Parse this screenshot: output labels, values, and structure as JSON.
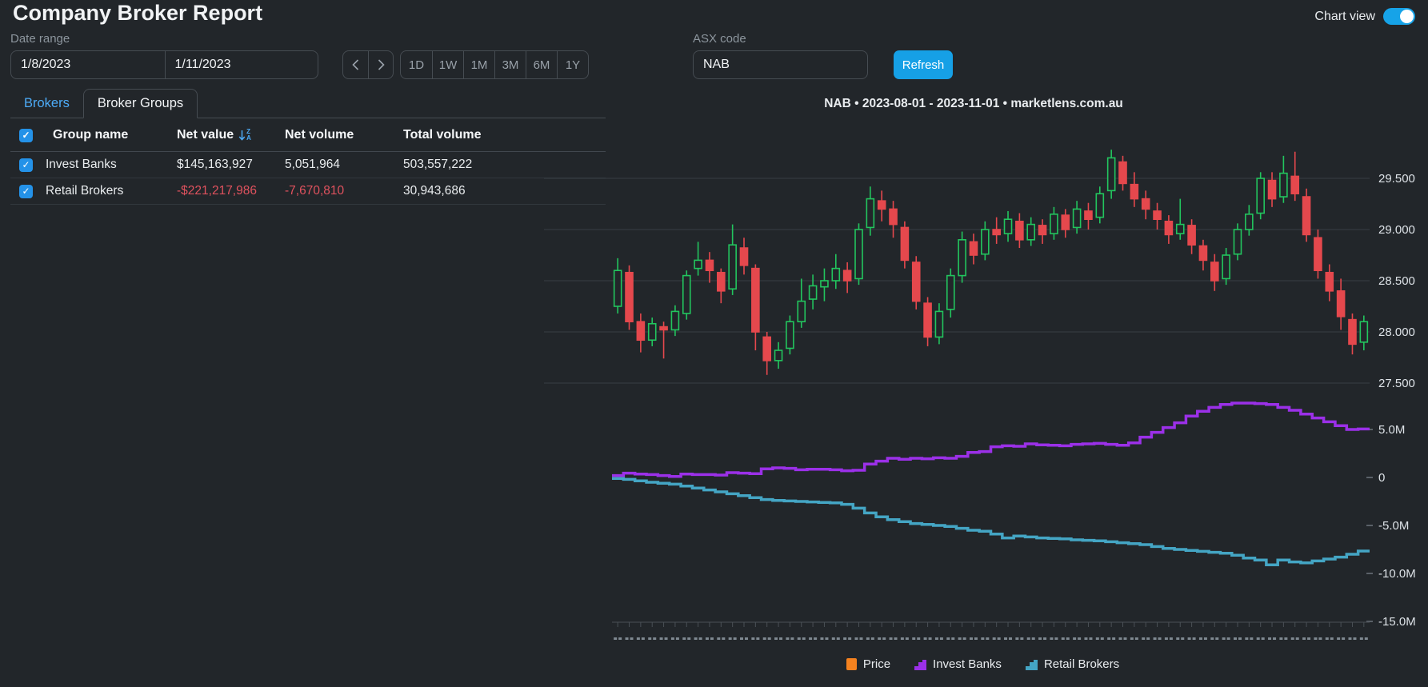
{
  "page": {
    "title": "Company Broker Report"
  },
  "header": {
    "chart_view_label": "Chart view",
    "chart_view_on": true
  },
  "controls": {
    "date_range_label": "Date range",
    "date_from": "1/8/2023",
    "date_to": "1/11/2023",
    "nav_prev": "chevron-left",
    "nav_next": "chevron-right",
    "periods": [
      "1D",
      "1W",
      "1M",
      "3M",
      "6M",
      "1Y"
    ],
    "asx_label": "ASX code",
    "asx_value": "NAB",
    "refresh_label": "Refresh"
  },
  "tabs": {
    "brokers": "Brokers",
    "broker_groups": "Broker Groups"
  },
  "table": {
    "headers": {
      "group_name": "Group name",
      "net_value": "Net value",
      "net_volume": "Net volume",
      "total_volume": "Total volume"
    },
    "rows": [
      {
        "checked": true,
        "name": "Invest Banks",
        "net_value": "$145,163,927",
        "net_volume": "5,051,964",
        "total_volume": "503,557,222",
        "negative": false
      },
      {
        "checked": true,
        "name": "Retail Brokers",
        "net_value": "-$221,217,986",
        "net_volume": "-7,670,810",
        "total_volume": "30,943,686",
        "negative": true
      }
    ]
  },
  "chart_data": {
    "type": "candlestick+step-lines",
    "title": "NAB • 2023-08-01 - 2023-11-01 • marketlens.com.au",
    "symbol": "NAB",
    "date_start": "2023-08-01",
    "date_end": "2023-11-01",
    "source": "marketlens.com.au",
    "price_axis": {
      "ticks": [
        29.5,
        29.0,
        28.5,
        28.0,
        27.5
      ],
      "labels": [
        "29.500",
        "29.000",
        "28.500",
        "28.000",
        "27.500"
      ]
    },
    "volume_axis": {
      "ticks": [
        5,
        0,
        -5,
        -10,
        -15
      ],
      "labels": [
        "5.0M",
        "0",
        "-5.0M",
        "-10.0M",
        "-15.0M"
      ],
      "unit": "millions of shares"
    },
    "colors": {
      "up": "#22c55e",
      "down": "#e5484d",
      "grid": "#383e44",
      "axis": "#4a5056",
      "tick_label": "#dde2e7"
    },
    "candles_ohlc": [
      [
        28.25,
        28.72,
        28.18,
        28.6
      ],
      [
        28.58,
        28.65,
        28.02,
        28.1
      ],
      [
        28.1,
        28.18,
        27.8,
        27.92
      ],
      [
        27.92,
        28.14,
        27.86,
        28.08
      ],
      [
        28.05,
        28.1,
        27.74,
        28.02
      ],
      [
        28.02,
        28.26,
        27.96,
        28.2
      ],
      [
        28.18,
        28.6,
        28.12,
        28.55
      ],
      [
        28.62,
        28.88,
        28.55,
        28.7
      ],
      [
        28.7,
        28.78,
        28.48,
        28.6
      ],
      [
        28.58,
        28.62,
        28.28,
        28.4
      ],
      [
        28.42,
        29.05,
        28.36,
        28.85
      ],
      [
        28.82,
        28.92,
        28.56,
        28.65
      ],
      [
        28.62,
        28.66,
        27.82,
        28.0
      ],
      [
        27.95,
        28.0,
        27.58,
        27.72
      ],
      [
        27.72,
        27.9,
        27.64,
        27.82
      ],
      [
        27.84,
        28.16,
        27.78,
        28.1
      ],
      [
        28.1,
        28.52,
        28.04,
        28.3
      ],
      [
        28.32,
        28.56,
        28.22,
        28.45
      ],
      [
        28.44,
        28.62,
        28.3,
        28.5
      ],
      [
        28.5,
        28.76,
        28.42,
        28.62
      ],
      [
        28.6,
        28.68,
        28.38,
        28.5
      ],
      [
        28.52,
        29.06,
        28.46,
        29.0
      ],
      [
        29.02,
        29.42,
        28.94,
        29.3
      ],
      [
        29.28,
        29.38,
        29.08,
        29.2
      ],
      [
        29.2,
        29.28,
        28.92,
        29.05
      ],
      [
        29.02,
        29.08,
        28.62,
        28.7
      ],
      [
        28.68,
        28.74,
        28.22,
        28.3
      ],
      [
        28.28,
        28.34,
        27.86,
        27.95
      ],
      [
        27.95,
        28.28,
        27.88,
        28.2
      ],
      [
        28.22,
        28.62,
        28.14,
        28.55
      ],
      [
        28.55,
        28.98,
        28.48,
        28.9
      ],
      [
        28.88,
        28.96,
        28.66,
        28.75
      ],
      [
        28.76,
        29.08,
        28.7,
        29.0
      ],
      [
        29.0,
        29.12,
        28.86,
        28.95
      ],
      [
        28.96,
        29.18,
        28.88,
        29.1
      ],
      [
        29.08,
        29.16,
        28.82,
        28.9
      ],
      [
        28.9,
        29.12,
        28.84,
        29.05
      ],
      [
        29.04,
        29.1,
        28.86,
        28.95
      ],
      [
        28.96,
        29.22,
        28.9,
        29.15
      ],
      [
        29.14,
        29.2,
        28.92,
        29.0
      ],
      [
        29.02,
        29.28,
        28.96,
        29.2
      ],
      [
        29.18,
        29.26,
        29.0,
        29.1
      ],
      [
        29.12,
        29.42,
        29.06,
        29.35
      ],
      [
        29.38,
        29.78,
        29.3,
        29.7
      ],
      [
        29.66,
        29.72,
        29.38,
        29.45
      ],
      [
        29.44,
        29.56,
        29.22,
        29.3
      ],
      [
        29.3,
        29.38,
        29.1,
        29.2
      ],
      [
        29.18,
        29.26,
        29.0,
        29.1
      ],
      [
        29.08,
        29.14,
        28.86,
        28.95
      ],
      [
        28.96,
        29.3,
        28.9,
        29.05
      ],
      [
        29.04,
        29.1,
        28.76,
        28.85
      ],
      [
        28.84,
        28.9,
        28.6,
        28.7
      ],
      [
        28.68,
        28.76,
        28.4,
        28.5
      ],
      [
        28.52,
        28.82,
        28.46,
        28.75
      ],
      [
        28.76,
        29.06,
        28.7,
        29.0
      ],
      [
        29.0,
        29.24,
        28.94,
        29.15
      ],
      [
        29.16,
        29.56,
        29.1,
        29.5
      ],
      [
        29.48,
        29.56,
        29.22,
        29.3
      ],
      [
        29.32,
        29.72,
        29.26,
        29.55
      ],
      [
        29.52,
        29.76,
        29.28,
        29.35
      ],
      [
        29.32,
        29.4,
        28.88,
        28.95
      ],
      [
        28.92,
        29.0,
        28.52,
        28.6
      ],
      [
        28.58,
        28.66,
        28.3,
        28.4
      ],
      [
        28.4,
        28.52,
        28.02,
        28.15
      ],
      [
        28.12,
        28.18,
        27.78,
        27.88
      ],
      [
        27.9,
        28.16,
        27.82,
        28.1
      ]
    ],
    "series": [
      {
        "name": "Invest Banks",
        "color": "#9b30e8",
        "values": [
          0.2,
          0.45,
          0.35,
          0.3,
          0.2,
          0.1,
          0.35,
          0.3,
          0.3,
          0.25,
          0.5,
          0.45,
          0.4,
          0.9,
          1.0,
          0.95,
          0.8,
          0.85,
          0.85,
          0.8,
          0.7,
          0.75,
          1.4,
          1.7,
          2.0,
          1.9,
          2.0,
          1.95,
          2.05,
          2.0,
          2.2,
          2.6,
          2.7,
          3.2,
          3.3,
          3.25,
          3.5,
          3.4,
          3.35,
          3.3,
          3.45,
          3.5,
          3.55,
          3.45,
          3.35,
          3.6,
          4.2,
          4.7,
          5.2,
          5.7,
          6.4,
          6.9,
          7.3,
          7.6,
          7.75,
          7.75,
          7.7,
          7.6,
          7.3,
          7.0,
          6.6,
          6.2,
          5.8,
          5.4,
          5.0,
          5.05
        ]
      },
      {
        "name": "Retail Brokers",
        "color": "#44a5c4",
        "values": [
          -0.1,
          -0.2,
          -0.35,
          -0.5,
          -0.6,
          -0.7,
          -0.9,
          -1.1,
          -1.3,
          -1.5,
          -1.7,
          -1.9,
          -2.1,
          -2.3,
          -2.4,
          -2.45,
          -2.5,
          -2.55,
          -2.6,
          -2.65,
          -2.8,
          -3.2,
          -3.7,
          -4.1,
          -4.4,
          -4.6,
          -4.8,
          -4.9,
          -5.0,
          -5.1,
          -5.3,
          -5.5,
          -5.6,
          -5.9,
          -6.3,
          -6.1,
          -6.2,
          -6.3,
          -6.35,
          -6.4,
          -6.5,
          -6.55,
          -6.6,
          -6.7,
          -6.8,
          -6.9,
          -7.0,
          -7.2,
          -7.4,
          -7.5,
          -7.6,
          -7.7,
          -7.8,
          -7.9,
          -8.1,
          -8.4,
          -8.6,
          -9.1,
          -8.6,
          -8.8,
          -8.9,
          -8.7,
          -8.5,
          -8.3,
          -8.0,
          -7.67
        ]
      }
    ],
    "legend": [
      {
        "label": "Price",
        "color": "#f5821f",
        "icon": "square"
      },
      {
        "label": "Invest Banks",
        "color": "#9b30e8",
        "icon": "step"
      },
      {
        "label": "Retail Brokers",
        "color": "#44a5c4",
        "icon": "step"
      }
    ]
  }
}
